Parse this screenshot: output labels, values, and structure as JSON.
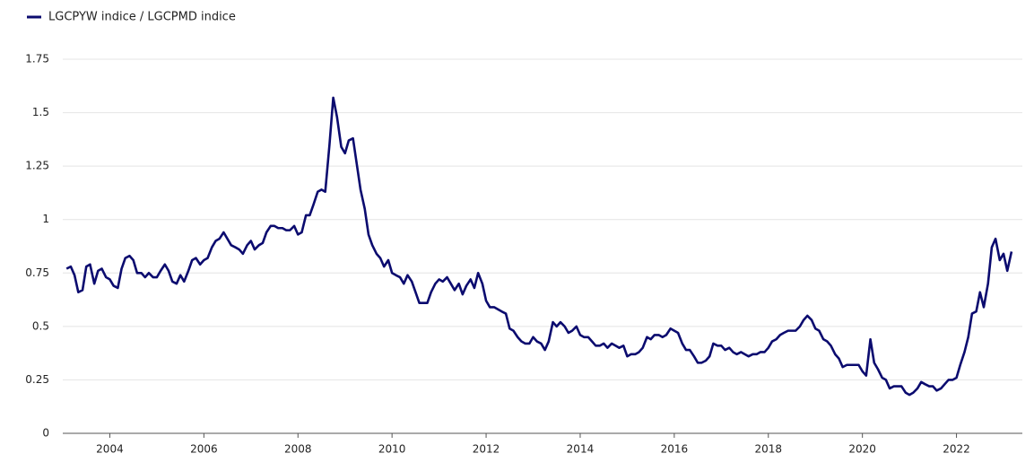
{
  "chart_data": {
    "type": "line",
    "series": [
      {
        "name": "LGCPYW indice / LGCPMD indice",
        "color": "#0b0b6f",
        "x": [
          2003.08,
          2003.17,
          2003.25,
          2003.33,
          2003.42,
          2003.5,
          2003.58,
          2003.67,
          2003.75,
          2003.83,
          2003.92,
          2004,
          2004.08,
          2004.17,
          2004.25,
          2004.33,
          2004.42,
          2004.5,
          2004.58,
          2004.67,
          2004.75,
          2004.83,
          2004.92,
          2005,
          2005.08,
          2005.17,
          2005.25,
          2005.33,
          2005.42,
          2005.5,
          2005.58,
          2005.67,
          2005.75,
          2005.83,
          2005.92,
          2006,
          2006.08,
          2006.17,
          2006.25,
          2006.33,
          2006.42,
          2006.5,
          2006.58,
          2006.67,
          2006.75,
          2006.83,
          2006.92,
          2007,
          2007.08,
          2007.17,
          2007.25,
          2007.33,
          2007.42,
          2007.5,
          2007.58,
          2007.67,
          2007.75,
          2007.83,
          2007.92,
          2008,
          2008.08,
          2008.17,
          2008.25,
          2008.33,
          2008.42,
          2008.5,
          2008.58,
          2008.67,
          2008.75,
          2008.83,
          2008.92,
          2009,
          2009.08,
          2009.17,
          2009.25,
          2009.33,
          2009.42,
          2009.5,
          2009.58,
          2009.67,
          2009.75,
          2009.83,
          2009.92,
          2010,
          2010.08,
          2010.17,
          2010.25,
          2010.33,
          2010.42,
          2010.5,
          2010.58,
          2010.67,
          2010.75,
          2010.83,
          2010.92,
          2011,
          2011.08,
          2011.17,
          2011.25,
          2011.33,
          2011.42,
          2011.5,
          2011.58,
          2011.67,
          2011.75,
          2011.83,
          2011.92,
          2012,
          2012.08,
          2012.17,
          2012.25,
          2012.33,
          2012.42,
          2012.5,
          2012.58,
          2012.67,
          2012.75,
          2012.83,
          2012.92,
          2013,
          2013.08,
          2013.17,
          2013.25,
          2013.33,
          2013.42,
          2013.5,
          2013.58,
          2013.67,
          2013.75,
          2013.83,
          2013.92,
          2014,
          2014.08,
          2014.17,
          2014.25,
          2014.33,
          2014.42,
          2014.5,
          2014.58,
          2014.67,
          2014.75,
          2014.83,
          2014.92,
          2015,
          2015.08,
          2015.17,
          2015.25,
          2015.33,
          2015.42,
          2015.5,
          2015.58,
          2015.67,
          2015.75,
          2015.83,
          2015.92,
          2016,
          2016.08,
          2016.17,
          2016.25,
          2016.33,
          2016.42,
          2016.5,
          2016.58,
          2016.67,
          2016.75,
          2016.83,
          2016.92,
          2017,
          2017.08,
          2017.17,
          2017.25,
          2017.33,
          2017.42,
          2017.5,
          2017.58,
          2017.67,
          2017.75,
          2017.83,
          2017.92,
          2018,
          2018.08,
          2018.17,
          2018.25,
          2018.33,
          2018.42,
          2018.5,
          2018.58,
          2018.67,
          2018.75,
          2018.83,
          2018.92,
          2019,
          2019.08,
          2019.17,
          2019.25,
          2019.33,
          2019.42,
          2019.5,
          2019.58,
          2019.67,
          2019.75,
          2019.83,
          2019.92,
          2020,
          2020.08,
          2020.17,
          2020.25,
          2020.33,
          2020.42,
          2020.5,
          2020.58,
          2020.67,
          2020.75,
          2020.83,
          2020.92,
          2021,
          2021.08,
          2021.17,
          2021.25,
          2021.33,
          2021.42,
          2021.5,
          2021.58,
          2021.67,
          2021.75,
          2021.83,
          2021.92,
          2022,
          2022.08,
          2022.17,
          2022.25,
          2022.33,
          2022.42,
          2022.5,
          2022.58,
          2022.67,
          2022.75,
          2022.83,
          2022.92,
          2023,
          2023.08,
          2023.17
        ],
        "values": [
          0.77,
          0.78,
          0.74,
          0.66,
          0.67,
          0.78,
          0.79,
          0.7,
          0.76,
          0.77,
          0.73,
          0.72,
          0.69,
          0.68,
          0.77,
          0.82,
          0.83,
          0.81,
          0.75,
          0.75,
          0.73,
          0.75,
          0.73,
          0.73,
          0.76,
          0.79,
          0.76,
          0.71,
          0.7,
          0.74,
          0.71,
          0.76,
          0.81,
          0.82,
          0.79,
          0.81,
          0.82,
          0.87,
          0.9,
          0.91,
          0.94,
          0.91,
          0.88,
          0.87,
          0.86,
          0.84,
          0.88,
          0.9,
          0.86,
          0.88,
          0.89,
          0.94,
          0.97,
          0.97,
          0.96,
          0.96,
          0.95,
          0.95,
          0.97,
          0.93,
          0.94,
          1.02,
          1.02,
          1.07,
          1.13,
          1.14,
          1.13,
          1.35,
          1.57,
          1.48,
          1.34,
          1.31,
          1.37,
          1.38,
          1.26,
          1.14,
          1.05,
          0.93,
          0.88,
          0.84,
          0.82,
          0.78,
          0.81,
          0.75,
          0.74,
          0.73,
          0.7,
          0.74,
          0.71,
          0.66,
          0.61,
          0.61,
          0.61,
          0.66,
          0.7,
          0.72,
          0.71,
          0.73,
          0.7,
          0.67,
          0.7,
          0.65,
          0.69,
          0.72,
          0.68,
          0.75,
          0.7,
          0.62,
          0.59,
          0.59,
          0.58,
          0.57,
          0.56,
          0.49,
          0.48,
          0.45,
          0.43,
          0.42,
          0.42,
          0.45,
          0.43,
          0.42,
          0.39,
          0.43,
          0.52,
          0.5,
          0.52,
          0.5,
          0.47,
          0.48,
          0.5,
          0.46,
          0.45,
          0.45,
          0.43,
          0.41,
          0.41,
          0.42,
          0.4,
          0.42,
          0.41,
          0.4,
          0.41,
          0.36,
          0.37,
          0.37,
          0.38,
          0.4,
          0.45,
          0.44,
          0.46,
          0.46,
          0.45,
          0.46,
          0.49,
          0.48,
          0.47,
          0.42,
          0.39,
          0.39,
          0.36,
          0.33,
          0.33,
          0.34,
          0.36,
          0.42,
          0.41,
          0.41,
          0.39,
          0.4,
          0.38,
          0.37,
          0.38,
          0.37,
          0.36,
          0.37,
          0.37,
          0.38,
          0.38,
          0.4,
          0.43,
          0.44,
          0.46,
          0.47,
          0.48,
          0.48,
          0.48,
          0.5,
          0.53,
          0.55,
          0.53,
          0.49,
          0.48,
          0.44,
          0.43,
          0.41,
          0.37,
          0.35,
          0.31,
          0.32,
          0.32,
          0.32,
          0.32,
          0.29,
          0.27,
          0.44,
          0.33,
          0.3,
          0.26,
          0.25,
          0.21,
          0.22,
          0.22,
          0.22,
          0.19,
          0.18,
          0.19,
          0.21,
          0.24,
          0.23,
          0.22,
          0.22,
          0.2,
          0.21,
          0.23,
          0.25,
          0.25,
          0.26,
          0.32,
          0.38,
          0.45,
          0.56,
          0.57,
          0.66,
          0.59,
          0.7,
          0.87,
          0.91,
          0.81,
          0.84,
          0.76,
          0.85
        ]
      }
    ],
    "xlim": [
      2003,
      2023.4
    ],
    "xticks": [
      2004,
      2006,
      2008,
      2010,
      2012,
      2014,
      2016,
      2018,
      2020,
      2022
    ],
    "ylim": [
      0,
      1.75
    ],
    "yticks": [
      0,
      0.25,
      0.5,
      0.75,
      1,
      1.25,
      1.5,
      1.75
    ],
    "grid": true,
    "legend": "top-left"
  }
}
